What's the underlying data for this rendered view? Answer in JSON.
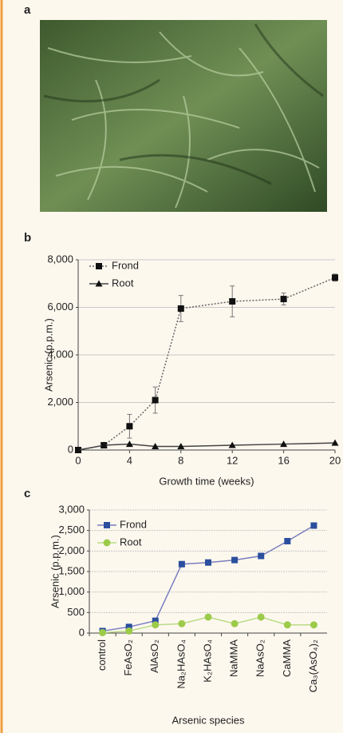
{
  "panel_labels": [
    "a",
    "b",
    "c"
  ],
  "chart_data": [
    {
      "type": "line",
      "x_label": "Growth time (weeks)",
      "y_label": "Arsenic (p.p.m.)",
      "x": [
        0,
        2,
        4,
        6,
        8,
        12,
        16,
        20
      ],
      "series": [
        {
          "name": "Frond",
          "color": "#111111",
          "line_color": "#666666",
          "style": "dotted",
          "marker": "square",
          "values": [
            0,
            200,
            1000,
            2100,
            5950,
            6250,
            6350,
            7250
          ],
          "errors": [
            0,
            50,
            500,
            550,
            550,
            650,
            250,
            150
          ]
        },
        {
          "name": "Root",
          "color": "#111111",
          "line_color": "#444444",
          "style": "solid",
          "marker": "triangle",
          "values": [
            0,
            200,
            250,
            150,
            150,
            200,
            250,
            300
          ]
        }
      ],
      "xlim": [
        0,
        20
      ],
      "xticks": [
        0,
        4,
        8,
        12,
        16,
        20
      ],
      "ylim": [
        0,
        8000
      ],
      "yticks": [
        0,
        {
          "value": 2000,
          "label": "2,000"
        },
        {
          "value": 4000,
          "label": "4,000"
        },
        {
          "value": 6000,
          "label": "6,000"
        },
        {
          "value": 8000,
          "label": "8,000"
        }
      ],
      "grid": true
    },
    {
      "type": "line",
      "x_label": "Arsenic species",
      "y_label": "Arsenic (p.p.m.)",
      "categories": [
        "control",
        "FeAsO₂",
        "AlAsO₂",
        "Na₂HAsO₄",
        "K₂HAsO₄",
        "NaMMA",
        "NaAsO₂",
        "CaMMA",
        "Ca₃(AsO₄)₂"
      ],
      "series": [
        {
          "name": "Frond",
          "color": "#2b4f9e",
          "line_color": "#7a7fc0",
          "style": "solid",
          "marker": "square",
          "values": [
            50,
            150,
            300,
            1680,
            1720,
            1780,
            1880,
            2240,
            2620
          ]
        },
        {
          "name": "Root",
          "color": "#9ccb4a",
          "line_color": "#b9dc86",
          "style": "solid",
          "marker": "circle",
          "values": [
            10,
            50,
            200,
            230,
            390,
            230,
            390,
            200,
            200
          ]
        }
      ],
      "ylim": [
        0,
        3000
      ],
      "yticks": [
        0,
        500,
        {
          "value": 1000,
          "label": "1,000"
        },
        {
          "value": 1500,
          "label": "1,500"
        },
        {
          "value": 2000,
          "label": "2,000"
        },
        {
          "value": 2500,
          "label": "2,500"
        },
        {
          "value": 3000,
          "label": "3,000"
        }
      ],
      "grid": true
    }
  ]
}
